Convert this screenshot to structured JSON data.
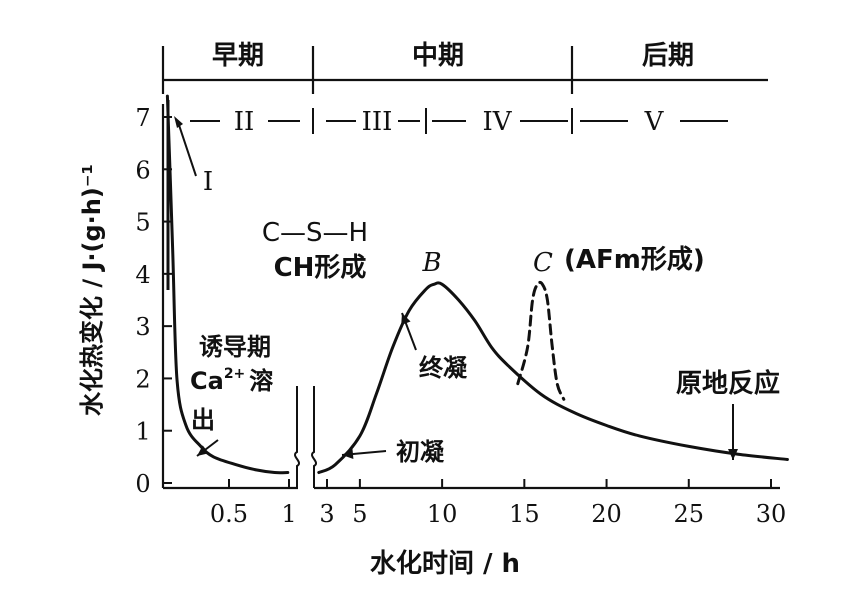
{
  "chart_data": {
    "type": "line",
    "xlabel": "水化时间 / h",
    "ylabel": "水化热变化 / J·(g·h)⁻¹",
    "x_ticks_left": [
      "0.5",
      "1"
    ],
    "x_ticks_right": [
      "3",
      "5",
      "10",
      "15",
      "20",
      "25",
      "30"
    ],
    "y_ticks": [
      "0",
      "1",
      "2",
      "3",
      "4",
      "5",
      "6",
      "7"
    ],
    "ylim": [
      0,
      7.5
    ],
    "left_segment_xlim": [
      0,
      1.1
    ],
    "right_segment_xlim": [
      2.2,
      31
    ],
    "periods": [
      {
        "label": "早期",
        "x_start": 0,
        "x_end": 1.2
      },
      {
        "label": "中期",
        "x_start": 1.2,
        "x_end": 16
      },
      {
        "label": "后期",
        "x_start": 16,
        "x_end": 31
      }
    ],
    "stages": [
      {
        "label": "I"
      },
      {
        "label": "II"
      },
      {
        "label": "III"
      },
      {
        "label": "IV"
      },
      {
        "label": "V"
      }
    ],
    "series": [
      {
        "style": "solid",
        "x": [
          0.01,
          0.03,
          0.05,
          0.1,
          0.2,
          0.3,
          0.5,
          0.7,
          0.9,
          1.05,
          2.4,
          3.5,
          5,
          6,
          7,
          8,
          9,
          9.5,
          10,
          11,
          12,
          13,
          14,
          16,
          18,
          20,
          22,
          25,
          28,
          31
        ],
        "y": [
          7.4,
          4.5,
          2.0,
          1.1,
          0.7,
          0.5,
          0.35,
          0.25,
          0.2,
          0.2,
          0.2,
          0.35,
          0.9,
          1.7,
          2.6,
          3.3,
          3.7,
          3.8,
          3.8,
          3.5,
          3.1,
          2.6,
          2.25,
          1.7,
          1.35,
          1.1,
          0.9,
          0.7,
          0.55,
          0.45
        ]
      },
      {
        "style": "dashed",
        "x": [
          14.6,
          15.2,
          15.5,
          15.8,
          16.1,
          16.4,
          16.7,
          17.0,
          17.4
        ],
        "y": [
          1.9,
          2.6,
          3.5,
          3.8,
          3.8,
          3.5,
          2.6,
          1.9,
          1.6
        ]
      }
    ],
    "annotations": {
      "csh_line1": "C—S—H",
      "csh_line2": "CH形成",
      "peak_b": "B",
      "peak_c": "C",
      "afm": "(AFm形成)",
      "induction": "诱导期",
      "ca_prefix": "Ca",
      "ca_sup": "2+",
      "ca_suffix": "溶",
      "ca_line2": "出",
      "final_set": "终凝",
      "initial_set": "初凝",
      "in_situ": "原地反应"
    }
  }
}
